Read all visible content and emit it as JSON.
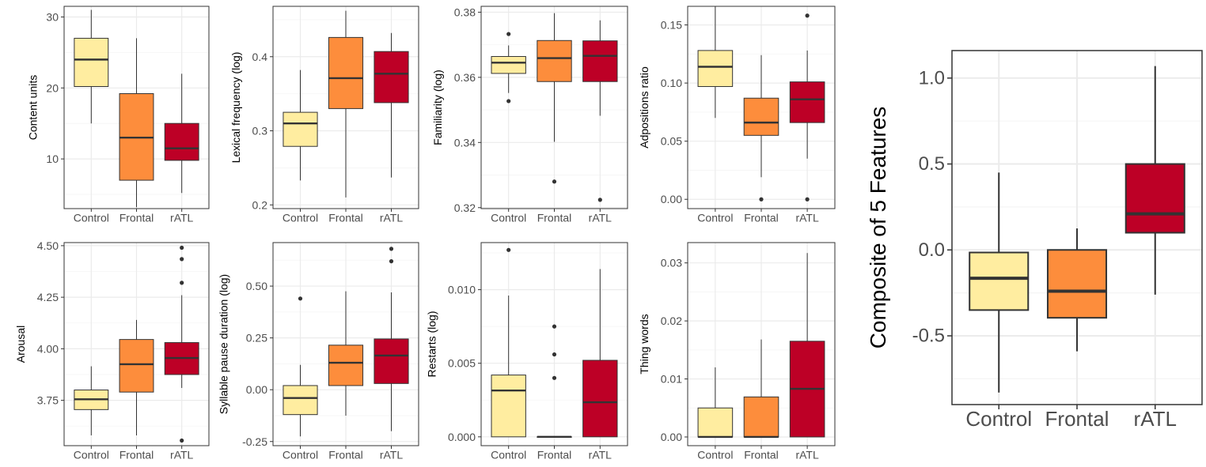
{
  "colors": {
    "Control": "#ffeda0",
    "Frontal": "#fd8d3c",
    "rATL": "#bd0026",
    "panel_border": "#333333",
    "grid_major": "#ebebeb",
    "grid_minor": "#f5f5f5",
    "box_line": "#333333",
    "tick_label": "#4d4d4d"
  },
  "chart_data": [
    {
      "type": "box",
      "ylabel": "Content units",
      "categories": [
        "Control",
        "Frontal",
        "rATL"
      ],
      "ylim": [
        3,
        31.5
      ],
      "yticks": [
        10,
        20,
        30
      ],
      "ytick_labels": [
        "10",
        "20",
        "30"
      ],
      "boxes": [
        {
          "group": "Control",
          "whisker_low": 15,
          "q1": 20.2,
          "median": 24,
          "q3": 27,
          "whisker_high": 31,
          "outliers": []
        },
        {
          "group": "Frontal",
          "whisker_low": 3.2,
          "q1": 7,
          "median": 13,
          "q3": 19.2,
          "whisker_high": 27,
          "outliers": []
        },
        {
          "group": "rATL",
          "whisker_low": 5.2,
          "q1": 9.8,
          "median": 11.5,
          "q3": 15,
          "whisker_high": 22,
          "outliers": []
        }
      ]
    },
    {
      "type": "box",
      "ylabel": "Lexical frequency (log)",
      "categories": [
        "Control",
        "Frontal",
        "rATL"
      ],
      "ylim": [
        0.195,
        0.468
      ],
      "yticks": [
        0.2,
        0.3,
        0.4
      ],
      "ytick_labels": [
        "0.2",
        "0.3",
        "0.4"
      ],
      "boxes": [
        {
          "group": "Control",
          "whisker_low": 0.233,
          "q1": 0.279,
          "median": 0.31,
          "q3": 0.325,
          "whisker_high": 0.382,
          "outliers": []
        },
        {
          "group": "Frontal",
          "whisker_low": 0.21,
          "q1": 0.33,
          "median": 0.371,
          "q3": 0.426,
          "whisker_high": 0.462,
          "outliers": []
        },
        {
          "group": "rATL",
          "whisker_low": 0.237,
          "q1": 0.338,
          "median": 0.377,
          "q3": 0.407,
          "whisker_high": 0.432,
          "outliers": []
        }
      ]
    },
    {
      "type": "box",
      "ylabel": "Familiarity (log)",
      "categories": [
        "Control",
        "Frontal",
        "rATL"
      ],
      "ylim": [
        0.3197,
        0.3818
      ],
      "yticks": [
        0.32,
        0.34,
        0.36,
        0.38
      ],
      "ytick_labels": [
        "0.32",
        "0.34",
        "0.36",
        "0.38"
      ],
      "boxes": [
        {
          "group": "Control",
          "whisker_low": 0.3552,
          "q1": 0.3612,
          "median": 0.3645,
          "q3": 0.3664,
          "whisker_high": 0.3698,
          "outliers": [
            0.3733,
            0.3527
          ]
        },
        {
          "group": "Frontal",
          "whisker_low": 0.3402,
          "q1": 0.3587,
          "median": 0.3659,
          "q3": 0.3713,
          "whisker_high": 0.3797,
          "outliers": [
            0.328
          ]
        },
        {
          "group": "rATL",
          "whisker_low": 0.3482,
          "q1": 0.3587,
          "median": 0.3666,
          "q3": 0.3712,
          "whisker_high": 0.3775,
          "outliers": [
            0.3224
          ]
        }
      ]
    },
    {
      "type": "box",
      "ylabel": "Adpositions ratio",
      "categories": [
        "Control",
        "Frontal",
        "rATL"
      ],
      "ylim": [
        -0.008,
        0.166
      ],
      "yticks": [
        0,
        0.05,
        0.1,
        0.15
      ],
      "ytick_labels": [
        "0.00",
        "0.05",
        "0.10",
        "0.15"
      ],
      "boxes": [
        {
          "group": "Control",
          "whisker_low": 0.07,
          "q1": 0.097,
          "median": 0.114,
          "q3": 0.128,
          "whisker_high": 0.166,
          "outliers": []
        },
        {
          "group": "Frontal",
          "whisker_low": 0.019,
          "q1": 0.055,
          "median": 0.066,
          "q3": 0.087,
          "whisker_high": 0.124,
          "outliers": [
            0
          ]
        },
        {
          "group": "rATL",
          "whisker_low": 0.035,
          "q1": 0.066,
          "median": 0.086,
          "q3": 0.101,
          "whisker_high": 0.128,
          "outliers": [
            0,
            0.158
          ]
        }
      ]
    },
    {
      "type": "box",
      "ylabel": "Arousal",
      "categories": [
        "Control",
        "Frontal",
        "rATL"
      ],
      "ylim": [
        3.53,
        4.515
      ],
      "yticks": [
        3.75,
        4,
        4.25,
        4.5
      ],
      "ytick_labels": [
        "3.75",
        "4.00",
        "4.25",
        "4.50"
      ],
      "boxes": [
        {
          "group": "Control",
          "whisker_low": 3.58,
          "q1": 3.705,
          "median": 3.755,
          "q3": 3.8,
          "whisker_high": 3.915,
          "outliers": []
        },
        {
          "group": "Frontal",
          "whisker_low": 3.58,
          "q1": 3.79,
          "median": 3.925,
          "q3": 4.045,
          "whisker_high": 4.14,
          "outliers": []
        },
        {
          "group": "rATL",
          "whisker_low": 3.81,
          "q1": 3.875,
          "median": 3.955,
          "q3": 4.03,
          "whisker_high": 4.26,
          "outliers": [
            4.49,
            4.435,
            4.32,
            3.555
          ]
        }
      ]
    },
    {
      "type": "box",
      "ylabel": "Syllable pause duration (log)",
      "categories": [
        "Control",
        "Frontal",
        "rATL"
      ],
      "ylim": [
        -0.27,
        0.71
      ],
      "yticks": [
        -0.25,
        0,
        0.25,
        0.5
      ],
      "ytick_labels": [
        "-0.25",
        "0.00",
        "0.25",
        "0.50"
      ],
      "boxes": [
        {
          "group": "Control",
          "whisker_low": -0.225,
          "q1": -0.12,
          "median": -0.04,
          "q3": 0.02,
          "whisker_high": 0.12,
          "outliers": [
            0.44
          ]
        },
        {
          "group": "Frontal",
          "whisker_low": -0.125,
          "q1": 0.02,
          "median": 0.13,
          "q3": 0.215,
          "whisker_high": 0.475,
          "outliers": []
        },
        {
          "group": "rATL",
          "whisker_low": -0.2,
          "q1": 0.03,
          "median": 0.165,
          "q3": 0.245,
          "whisker_high": 0.47,
          "outliers": [
            0.68,
            0.62
          ]
        }
      ]
    },
    {
      "type": "box",
      "ylabel": "Restarts (log)",
      "categories": [
        "Control",
        "Frontal",
        "rATL"
      ],
      "ylim": [
        -0.0006,
        0.0132
      ],
      "yticks": [
        0,
        0.005,
        0.01
      ],
      "ytick_labels": [
        "0.000",
        "0.005",
        "0.010"
      ],
      "boxes": [
        {
          "group": "Control",
          "whisker_low": 0,
          "q1": 0,
          "median": 0.00315,
          "q3": 0.0042,
          "whisker_high": 0.0096,
          "outliers": [
            0.0127
          ]
        },
        {
          "group": "Frontal",
          "whisker_low": 0,
          "q1": 0,
          "median": 0,
          "q3": 0,
          "whisker_high": 0,
          "outliers": [
            0.0075,
            0.0056,
            0.004
          ]
        },
        {
          "group": "rATL",
          "whisker_low": 0,
          "q1": 0,
          "median": 0.00235,
          "q3": 0.0052,
          "whisker_high": 0.0114,
          "outliers": []
        }
      ]
    },
    {
      "type": "box",
      "ylabel": "Thing words",
      "categories": [
        "Control",
        "Frontal",
        "rATL"
      ],
      "ylim": [
        -0.0015,
        0.0335
      ],
      "yticks": [
        0,
        0.01,
        0.02,
        0.03
      ],
      "ytick_labels": [
        "0.00",
        "0.01",
        "0.02",
        "0.03"
      ],
      "boxes": [
        {
          "group": "Control",
          "whisker_low": 0,
          "q1": 0,
          "median": 0,
          "q3": 0.005,
          "whisker_high": 0.012,
          "outliers": []
        },
        {
          "group": "Frontal",
          "whisker_low": 0,
          "q1": 0,
          "median": 0,
          "q3": 0.0069,
          "whisker_high": 0.0168,
          "outliers": []
        },
        {
          "group": "rATL",
          "whisker_low": 0,
          "q1": 0,
          "median": 0.0083,
          "q3": 0.0165,
          "whisker_high": 0.0317,
          "outliers": []
        }
      ]
    },
    {
      "type": "box",
      "ylabel": "Composite of 5 Features",
      "categories": [
        "Control",
        "Frontal",
        "rATL"
      ],
      "ylim": [
        -0.9,
        1.16
      ],
      "yticks": [
        -0.5,
        0,
        0.5,
        1
      ],
      "ytick_labels": [
        "-0.5",
        "0.0",
        "0.5",
        "1.0"
      ],
      "boxes": [
        {
          "group": "Control",
          "whisker_low": -0.83,
          "q1": -0.35,
          "median": -0.165,
          "q3": -0.015,
          "whisker_high": 0.45,
          "outliers": []
        },
        {
          "group": "Frontal",
          "whisker_low": -0.59,
          "q1": -0.395,
          "median": -0.24,
          "q3": 0,
          "whisker_high": 0.125,
          "outliers": []
        },
        {
          "group": "rATL",
          "whisker_low": -0.26,
          "q1": 0.1,
          "median": 0.21,
          "q3": 0.5,
          "whisker_high": 1.07,
          "outliers": []
        }
      ]
    }
  ]
}
